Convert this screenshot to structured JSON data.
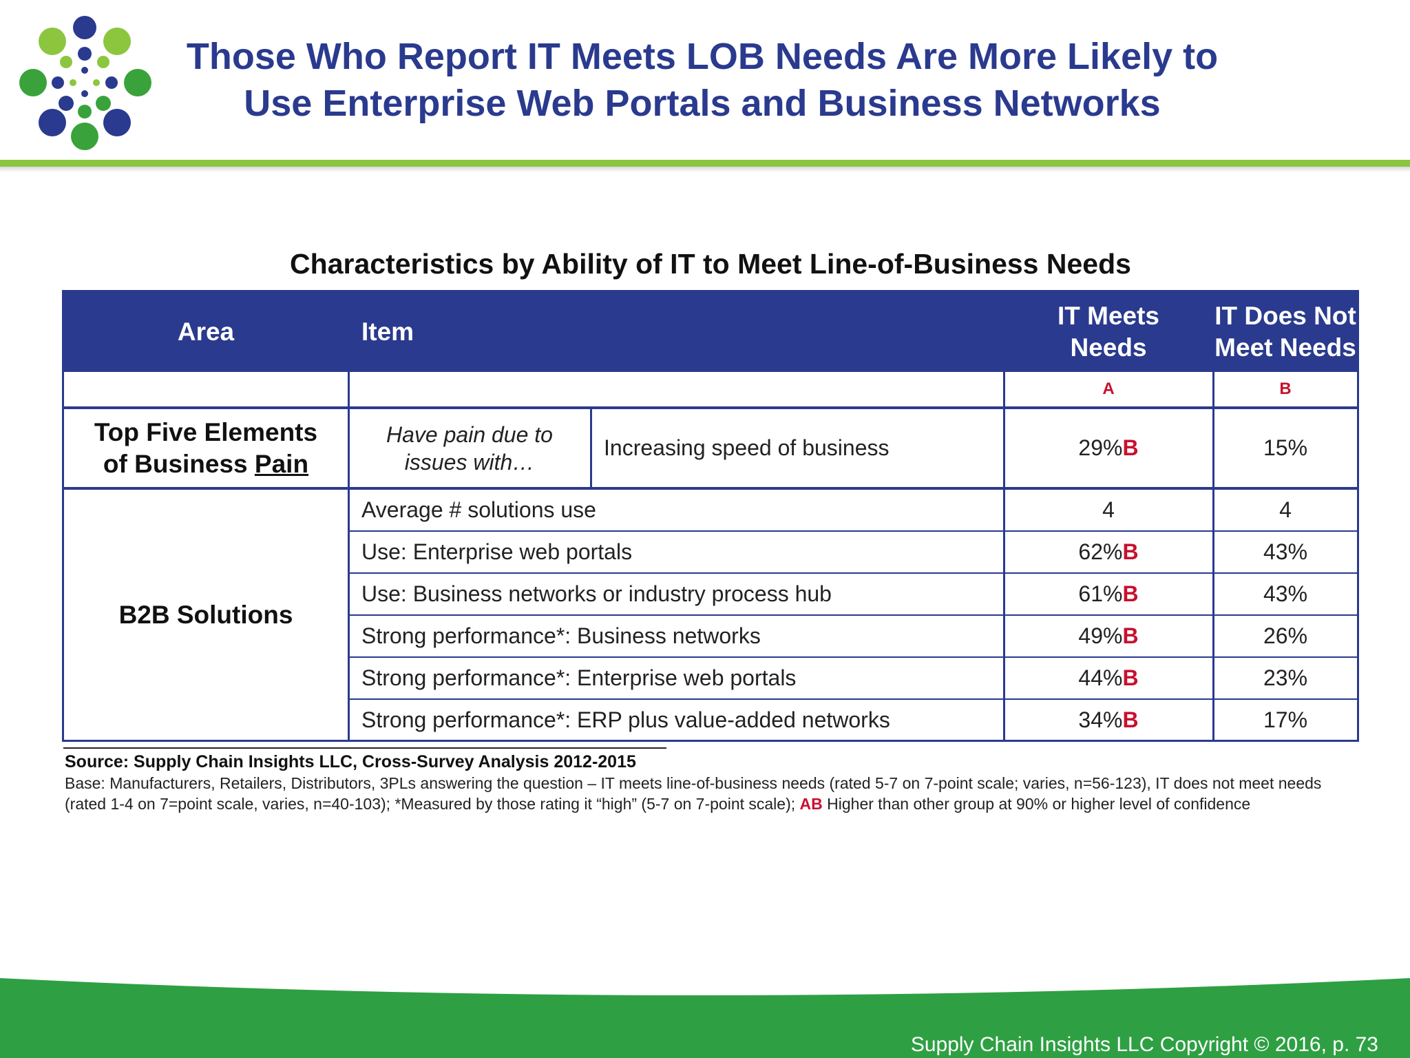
{
  "header": {
    "title_line1": "Those Who Report IT Meets LOB Needs Are More Likely to",
    "title_line2": "Use Enterprise Web Portals and Business Networks",
    "logo_colors": {
      "blue": "#2a3a8e",
      "green": "#3aa23a",
      "lime": "#8cc63f"
    }
  },
  "table": {
    "title": "Characteristics by Ability of IT to Meet Line-of-Business Needs",
    "headers": {
      "area": "Area",
      "item": "Item",
      "meets": [
        "IT Meets",
        "Needs"
      ],
      "not_meets": [
        "IT Does Not",
        "Meet Needs"
      ]
    },
    "group_letters": {
      "meets": "A",
      "not_meets": "B"
    },
    "pain_row": {
      "area": [
        "Top Five Elements",
        "of Business ",
        "Pain"
      ],
      "subitem": [
        "Have pain due to",
        "issues with…"
      ],
      "item": "Increasing speed of business",
      "meets": "29%",
      "meets_tag": "B",
      "not_meets": "15%"
    },
    "b2b_area": "B2B Solutions",
    "b2b_rows": [
      {
        "item": "Average # solutions use",
        "meets": "4",
        "meets_tag": "",
        "not_meets": "4"
      },
      {
        "item": "Use: Enterprise web portals",
        "meets": "62%",
        "meets_tag": "B",
        "not_meets": "43%"
      },
      {
        "item": "Use: Business networks or industry process hub",
        "meets": "61%",
        "meets_tag": "B",
        "not_meets": "43%"
      },
      {
        "item": "Strong performance*: Business networks",
        "meets": "49%",
        "meets_tag": "B",
        "not_meets": "26%"
      },
      {
        "item": "Strong performance*: Enterprise web portals",
        "meets": "44%",
        "meets_tag": "B",
        "not_meets": "23%"
      },
      {
        "item": "Strong performance*: ERP plus value-added networks",
        "meets": "34%",
        "meets_tag": "B",
        "not_meets": "17%"
      }
    ],
    "colors": {
      "header_bg": "#2a3a8e",
      "tag": "#c8102e"
    }
  },
  "footnotes": {
    "source": "Source:  Supply Chain Insights LLC, Cross-Survey Analysis 2012-2015",
    "base_pre": "Base:  Manufacturers, Retailers, Distributors, 3PLs answering the question – IT meets line-of-business needs (rated 5-7 on 7-point scale; varies, n=56-123), IT does not meet needs (rated 1-4 on 7=point scale, varies, n=40-103); *Measured by those rating it “high” (5-7 on 7-point scale); ",
    "base_tag": "AB",
    "base_post": " Higher than other group at 90% or higher level of confidence"
  },
  "footer": {
    "copyright": "Supply Chain Insights LLC Copyright © 2016, p. 73",
    "band_color": "#2ea043"
  }
}
